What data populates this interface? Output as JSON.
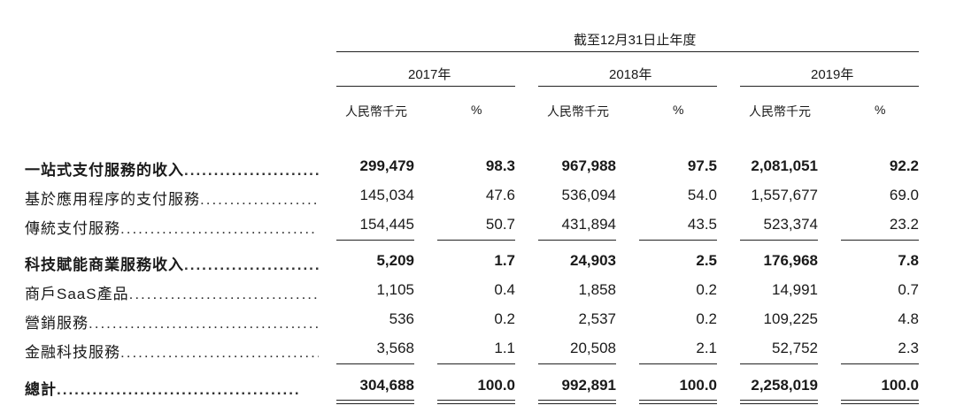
{
  "header": {
    "period": "截至12月31日止年度",
    "years": [
      "2017年",
      "2018年",
      "2019年"
    ],
    "unit_label": "人民幣千元",
    "pct_label": "%"
  },
  "rows": [
    {
      "label": "一站式支付服務的收入",
      "bold": true,
      "values": [
        "299,479",
        "98.3",
        "967,988",
        "97.5",
        "2,081,051",
        "92.2"
      ]
    },
    {
      "label": "基於應用程序的支付服務",
      "bold": false,
      "values": [
        "145,034",
        "47.6",
        "536,094",
        "54.0",
        "1,557,677",
        "69.0"
      ]
    },
    {
      "label": "傳統支付服務",
      "bold": false,
      "values": [
        "154,445",
        "50.7",
        "431,894",
        "43.5",
        "523,374",
        "23.2"
      ]
    },
    {
      "label": "科技賦能商業服務收入",
      "bold": true,
      "values": [
        "5,209",
        "1.7",
        "24,903",
        "2.5",
        "176,968",
        "7.8"
      ]
    },
    {
      "label": "商戶SaaS產品",
      "bold": false,
      "values": [
        "1,105",
        "0.4",
        "1,858",
        "0.2",
        "14,991",
        "0.7"
      ]
    },
    {
      "label": "營銷服務",
      "bold": false,
      "values": [
        "536",
        "0.2",
        "2,537",
        "0.2",
        "109,225",
        "4.8"
      ]
    },
    {
      "label": "金融科技服務",
      "bold": false,
      "values": [
        "3,568",
        "1.1",
        "20,508",
        "2.1",
        "52,752",
        "2.3"
      ]
    },
    {
      "label": "總計",
      "bold": true,
      "values": [
        "304,688",
        "100.0",
        "992,891",
        "100.0",
        "2,258,019",
        "100.0"
      ]
    }
  ]
}
